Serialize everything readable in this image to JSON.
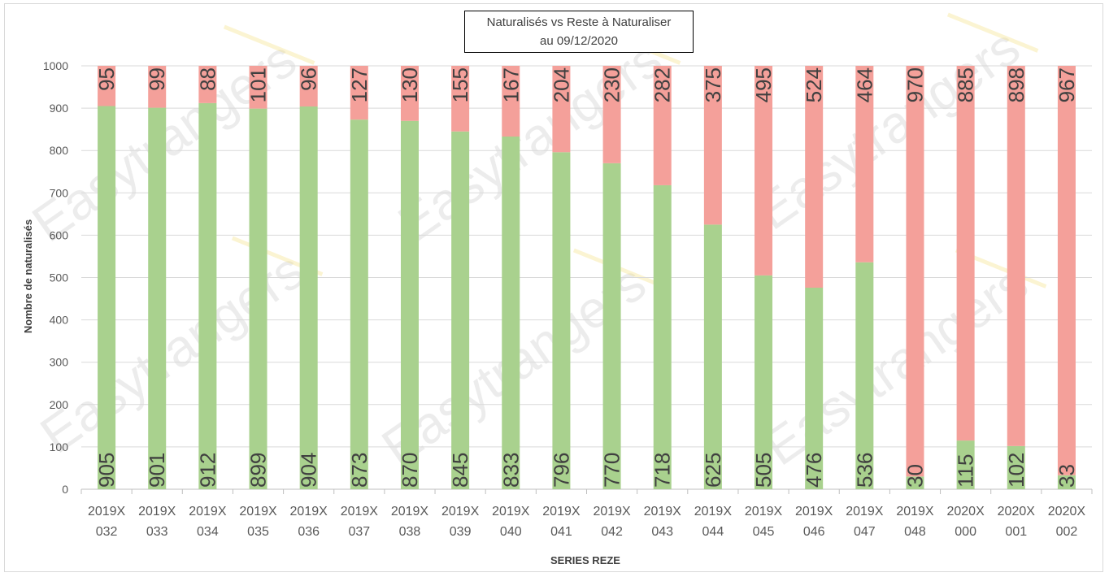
{
  "chart_data": {
    "type": "bar",
    "stacked": true,
    "title_line1": "Naturalisés vs Reste à Naturaliser",
    "title_line2": "au 09/12/2020",
    "xlabel": "SERIES REZE",
    "ylabel": "Nombre de naturalisés",
    "ylim": [
      0,
      1000
    ],
    "yticks": [
      0,
      100,
      200,
      300,
      400,
      500,
      600,
      700,
      800,
      900,
      1000
    ],
    "grid": true,
    "legend": "none",
    "categories": [
      [
        "2019X",
        "032"
      ],
      [
        "2019X",
        "033"
      ],
      [
        "2019X",
        "034"
      ],
      [
        "2019X",
        "035"
      ],
      [
        "2019X",
        "036"
      ],
      [
        "2019X",
        "037"
      ],
      [
        "2019X",
        "038"
      ],
      [
        "2019X",
        "039"
      ],
      [
        "2019X",
        "040"
      ],
      [
        "2019X",
        "041"
      ],
      [
        "2019X",
        "042"
      ],
      [
        "2019X",
        "043"
      ],
      [
        "2019X",
        "044"
      ],
      [
        "2019X",
        "045"
      ],
      [
        "2019X",
        "046"
      ],
      [
        "2019X",
        "047"
      ],
      [
        "2019X",
        "048"
      ],
      [
        "2020X",
        "000"
      ],
      [
        "2020X",
        "001"
      ],
      [
        "2020X",
        "002"
      ]
    ],
    "series": [
      {
        "values": [
          905,
          901,
          912,
          899,
          904,
          873,
          870,
          845,
          833,
          796,
          770,
          718,
          625,
          505,
          476,
          536,
          30,
          115,
          102,
          33
        ],
        "color": "#a9d18e"
      },
      {
        "values": [
          95,
          99,
          88,
          101,
          96,
          127,
          130,
          155,
          167,
          204,
          230,
          282,
          375,
          495,
          524,
          464,
          970,
          885,
          898,
          967
        ],
        "color": "#f4a09a"
      }
    ]
  },
  "watermark": "Easytrangers"
}
